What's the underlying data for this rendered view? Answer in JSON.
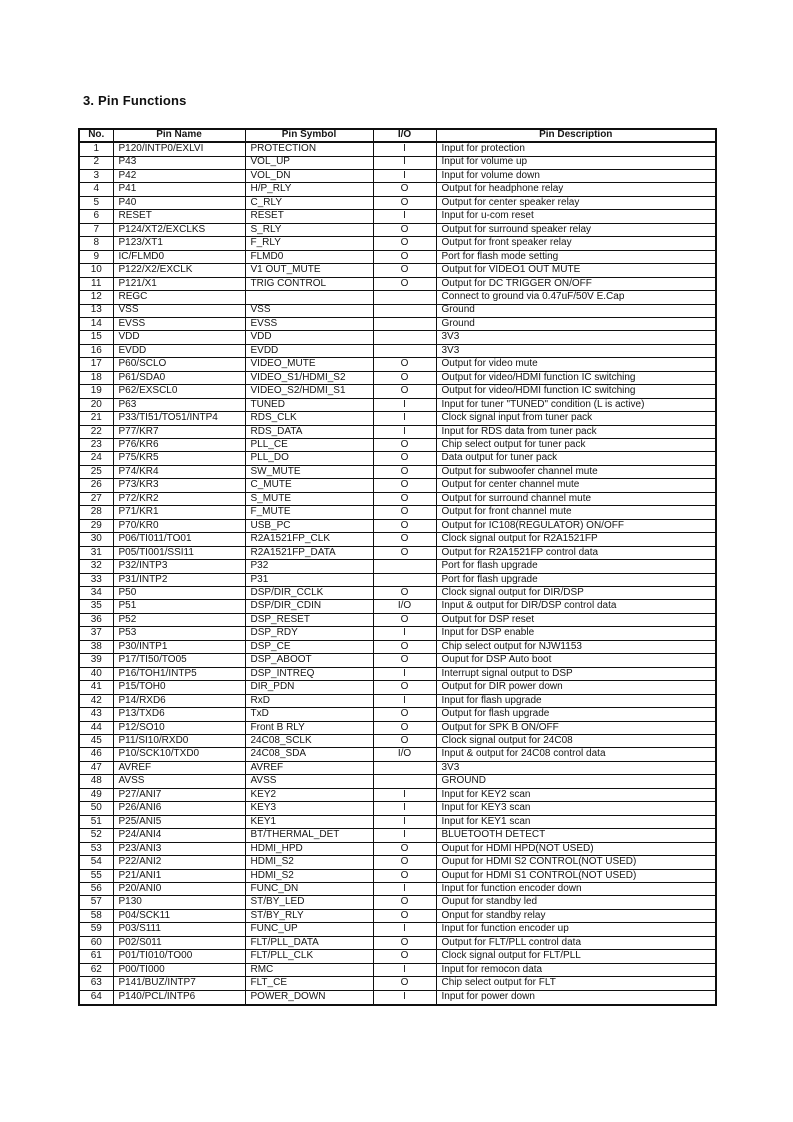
{
  "title": "3. Pin Functions",
  "table": {
    "headers": [
      "No.",
      "Pin Name",
      "Pin Symbol",
      "I/O",
      "Pin Description"
    ],
    "rows": [
      {
        "no": "1",
        "name": "P120/INTP0/EXLVI",
        "symbol": "PROTECTION",
        "io": "I",
        "desc": "Input for protection"
      },
      {
        "no": "2",
        "name": "P43",
        "symbol": "VOL_UP",
        "io": "I",
        "desc": "Input for volume up"
      },
      {
        "no": "3",
        "name": "P42",
        "symbol": "VOL_DN",
        "io": "I",
        "desc": "Input for volume down"
      },
      {
        "no": "4",
        "name": "P41",
        "symbol": "H/P_RLY",
        "io": "O",
        "desc": "Output for headphone relay"
      },
      {
        "no": "5",
        "name": "P40",
        "symbol": "C_RLY",
        "io": "O",
        "desc": "Output for center speaker relay"
      },
      {
        "no": "6",
        "name": "RESET",
        "symbol": "RESET",
        "io": "I",
        "desc": "Input for u-com reset"
      },
      {
        "no": "7",
        "name": "P124/XT2/EXCLKS",
        "symbol": "S_RLY",
        "io": "O",
        "desc": "Output for surround speaker relay"
      },
      {
        "no": "8",
        "name": "P123/XT1",
        "symbol": "F_RLY",
        "io": "O",
        "desc": "Output for front speaker relay"
      },
      {
        "no": "9",
        "name": "IC/FLMD0",
        "symbol": "FLMD0",
        "io": "O",
        "desc": "Port for flash mode setting"
      },
      {
        "no": "10",
        "name": "P122/X2/EXCLK",
        "symbol": "V1 OUT_MUTE",
        "io": "O",
        "desc": "Output for VIDEO1 OUT MUTE"
      },
      {
        "no": "11",
        "name": "P121/X1",
        "symbol": "TRIG CONTROL",
        "io": "O",
        "desc": "Output for DC TRIGGER ON/OFF"
      },
      {
        "no": "12",
        "name": "REGC",
        "symbol": "",
        "io": "",
        "desc": "Connect to ground via 0.47uF/50V E.Cap"
      },
      {
        "no": "13",
        "name": "VSS",
        "symbol": "VSS",
        "io": "",
        "desc": "Ground"
      },
      {
        "no": "14",
        "name": "EVSS",
        "symbol": "EVSS",
        "io": "",
        "desc": "Ground"
      },
      {
        "no": "15",
        "name": "VDD",
        "symbol": "VDD",
        "io": "",
        "desc": "3V3"
      },
      {
        "no": "16",
        "name": "EVDD",
        "symbol": "EVDD",
        "io": "",
        "desc": "3V3"
      },
      {
        "no": "17",
        "name": "P60/SCLO",
        "symbol": "VIDEO_MUTE",
        "io": "O",
        "desc": "Output for video mute"
      },
      {
        "no": "18",
        "name": "P61/SDA0",
        "symbol": "VIDEO_S1/HDMI_S2",
        "io": "O",
        "desc": "Output for video/HDMI function IC switching"
      },
      {
        "no": "19",
        "name": "P62/EXSCL0",
        "symbol": "VIDEO_S2/HDMI_S1",
        "io": "O",
        "desc": "Output for video/HDMI function IC switching"
      },
      {
        "no": "20",
        "name": "P63",
        "symbol": "TUNED",
        "io": "I",
        "desc": "Input for tuner \"TUNED\" condition (L is active)"
      },
      {
        "no": "21",
        "name": "P33/TI51/TO51/INTP4",
        "symbol": "RDS_CLK",
        "io": "I",
        "desc": "Clock signal input from tuner pack"
      },
      {
        "no": "22",
        "name": "P77/KR7",
        "symbol": "RDS_DATA",
        "io": "I",
        "desc": "Input for RDS data from tuner pack"
      },
      {
        "no": "23",
        "name": "P76/KR6",
        "symbol": "PLL_CE",
        "io": "O",
        "desc": "Chip select output for tuner pack"
      },
      {
        "no": "24",
        "name": "P75/KR5",
        "symbol": "PLL_DO",
        "io": "O",
        "desc": "Data output for tuner pack"
      },
      {
        "no": "25",
        "name": "P74/KR4",
        "symbol": "SW_MUTE",
        "io": "O",
        "desc": "Output for subwoofer channel mute"
      },
      {
        "no": "26",
        "name": "P73/KR3",
        "symbol": "C_MUTE",
        "io": "O",
        "desc": "Output for center channel mute"
      },
      {
        "no": "27",
        "name": "P72/KR2",
        "symbol": "S_MUTE",
        "io": "O",
        "desc": "Output for surround channel mute"
      },
      {
        "no": "28",
        "name": "P71/KR1",
        "symbol": "F_MUTE",
        "io": "O",
        "desc": "Output for front channel mute"
      },
      {
        "no": "29",
        "name": "P70/KR0",
        "symbol": "USB_PC",
        "io": "O",
        "desc": "Output for IC108(REGULATOR) ON/OFF"
      },
      {
        "no": "30",
        "name": "P06/TI011/TO01",
        "symbol": "R2A1521FP_CLK",
        "io": "O",
        "desc": "Clock signal output for R2A1521FP"
      },
      {
        "no": "31",
        "name": "P05/TI001/SSI11",
        "symbol": "R2A1521FP_DATA",
        "io": "O",
        "desc": "Output for R2A1521FP control data"
      },
      {
        "no": "32",
        "name": "P32/INTP3",
        "symbol": "P32",
        "io": "",
        "desc": "Port for flash upgrade"
      },
      {
        "no": "33",
        "name": "P31/INTP2",
        "symbol": "P31",
        "io": "",
        "desc": "Port for flash upgrade"
      },
      {
        "no": "34",
        "name": "P50",
        "symbol": "DSP/DIR_CCLK",
        "io": "O",
        "desc": "Clock signal output for DIR/DSP"
      },
      {
        "no": "35",
        "name": "P51",
        "symbol": "DSP/DIR_CDIN",
        "io": "I/O",
        "desc": "Input & output for DIR/DSP control data"
      },
      {
        "no": "36",
        "name": "P52",
        "symbol": "DSP_RESET",
        "io": "O",
        "desc": "Output for DSP reset"
      },
      {
        "no": "37",
        "name": "P53",
        "symbol": "DSP_RDY",
        "io": "I",
        "desc": "Input for DSP enable"
      },
      {
        "no": "38",
        "name": "P30/INTP1",
        "symbol": "DSP_CE",
        "io": "O",
        "desc": "Chip select output for NJW1153"
      },
      {
        "no": "39",
        "name": "P17/TI50/TO05",
        "symbol": "DSP_ABOOT",
        "io": "O",
        "desc": "Ouput for DSP Auto boot"
      },
      {
        "no": "40",
        "name": "P16/TOH1/INTP5",
        "symbol": "DSP_INTREQ",
        "io": "I",
        "desc": "Interrupt signal output to DSP"
      },
      {
        "no": "41",
        "name": "P15/TOH0",
        "symbol": "DIR_PDN",
        "io": "O",
        "desc": "Output for DIR power down"
      },
      {
        "no": "42",
        "name": "P14/RXD6",
        "symbol": "RxD",
        "io": "I",
        "desc": "Input for flash upgrade"
      },
      {
        "no": "43",
        "name": "P13/TXD6",
        "symbol": "TxD",
        "io": "O",
        "desc": "Output for flash upgrade"
      },
      {
        "no": "44",
        "name": "P12/SO10",
        "symbol": "Front B RLY",
        "io": "O",
        "desc": "Output for SPK B ON/OFF"
      },
      {
        "no": "45",
        "name": "P11/SI10/RXD0",
        "symbol": "24C08_SCLK",
        "io": "O",
        "desc": "Clock signal output for 24C08"
      },
      {
        "no": "46",
        "name": "P10/SCK10/TXD0",
        "symbol": "24C08_SDA",
        "io": "I/O",
        "desc": "Input & output for 24C08 control data"
      },
      {
        "no": "47",
        "name": "AVREF",
        "symbol": "AVREF",
        "io": "",
        "desc": "3V3"
      },
      {
        "no": "48",
        "name": "AVSS",
        "symbol": "AVSS",
        "io": "",
        "desc": "GROUND"
      },
      {
        "no": "49",
        "name": "P27/ANI7",
        "symbol": "KEY2",
        "io": "I",
        "desc": "Input for KEY2 scan"
      },
      {
        "no": "50",
        "name": "P26/ANI6",
        "symbol": "KEY3",
        "io": "I",
        "desc": "Input for KEY3 scan"
      },
      {
        "no": "51",
        "name": "P25/ANI5",
        "symbol": "KEY1",
        "io": "I",
        "desc": "Input for KEY1 scan"
      },
      {
        "no": "52",
        "name": "P24/ANI4",
        "symbol": "BT/THERMAL_DET",
        "io": "I",
        "desc": "BLUETOOTH DETECT"
      },
      {
        "no": "53",
        "name": "P23/ANI3",
        "symbol": "HDMI_HPD",
        "io": "O",
        "desc": "Ouput for HDMI HPD(NOT USED)"
      },
      {
        "no": "54",
        "name": "P22/ANI2",
        "symbol": "HDMI_S2",
        "io": "O",
        "desc": "Ouput for HDMI S2 CONTROL(NOT USED)"
      },
      {
        "no": "55",
        "name": "P21/ANI1",
        "symbol": "HDMI_S2",
        "io": "O",
        "desc": "Ouput for HDMI S1 CONTROL(NOT USED)"
      },
      {
        "no": "56",
        "name": "P20/ANI0",
        "symbol": "FUNC_DN",
        "io": "I",
        "desc": "Input for function encoder down"
      },
      {
        "no": "57",
        "name": "P130",
        "symbol": "ST/BY_LED",
        "io": "O",
        "desc": "Ouput for standby led"
      },
      {
        "no": "58",
        "name": "P04/SCK11",
        "symbol": "ST/BY_RLY",
        "io": "O",
        "desc": "Onput for standby relay"
      },
      {
        "no": "59",
        "name": "P03/S111",
        "symbol": "FUNC_UP",
        "io": "I",
        "desc": "Input for function encoder up"
      },
      {
        "no": "60",
        "name": "P02/S011",
        "symbol": "FLT/PLL_DATA",
        "io": "O",
        "desc": "Output for FLT/PLL control data"
      },
      {
        "no": "61",
        "name": "P01/TI010/TO00",
        "symbol": "FLT/PLL_CLK",
        "io": "O",
        "desc": "Clock signal output for FLT/PLL"
      },
      {
        "no": "62",
        "name": "P00/TI000",
        "symbol": "RMC",
        "io": "I",
        "desc": "Input for remocon data"
      },
      {
        "no": "63",
        "name": "P141/BUZ/INTP7",
        "symbol": "FLT_CE",
        "io": "O",
        "desc": "Chip select output for FLT"
      },
      {
        "no": "64",
        "name": "P140/PCL/INTP6",
        "symbol": "POWER_DOWN",
        "io": "I",
        "desc": "Input for power down"
      }
    ]
  }
}
